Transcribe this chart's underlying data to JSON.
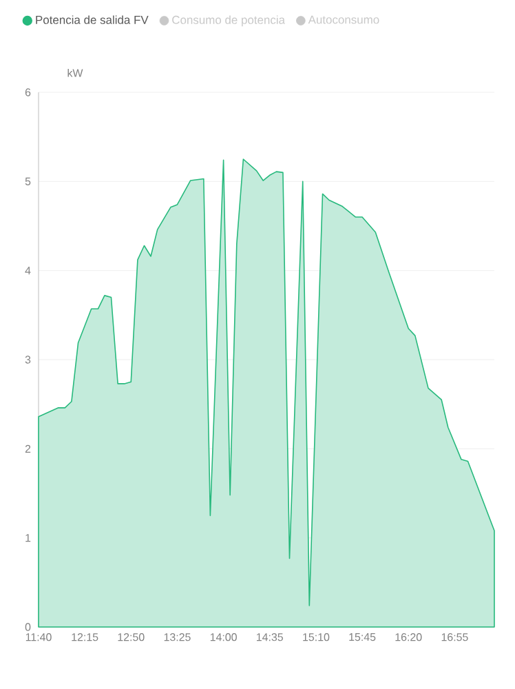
{
  "chart_data": {
    "type": "area",
    "ylabel": "kW",
    "x": [
      11.667,
      11.917,
      12.0,
      12.083,
      12.167,
      12.333,
      12.417,
      12.5,
      12.583,
      12.667,
      12.75,
      12.833,
      12.917,
      13.0,
      13.083,
      13.167,
      13.333,
      13.417,
      13.583,
      13.75,
      13.833,
      14.0,
      14.083,
      14.167,
      14.25,
      14.417,
      14.5,
      14.583,
      14.667,
      14.75,
      14.833,
      15.0,
      15.083,
      15.25,
      15.333,
      15.5,
      15.667,
      15.75,
      15.917,
      16.083,
      16.333,
      16.417,
      16.583,
      16.75,
      16.833,
      17.0,
      17.083,
      17.417
    ],
    "series": [
      {
        "name": "Potencia de salida FV",
        "color": "#27b97d",
        "values": [
          2.36,
          2.46,
          2.46,
          2.53,
          3.19,
          3.57,
          3.57,
          3.72,
          3.7,
          2.73,
          2.73,
          2.75,
          4.12,
          4.28,
          4.16,
          4.46,
          4.71,
          4.74,
          5.01,
          5.03,
          1.25,
          5.24,
          1.48,
          4.3,
          5.25,
          5.12,
          5.01,
          5.07,
          5.11,
          5.1,
          0.77,
          5.0,
          0.24,
          4.86,
          4.79,
          4.72,
          4.6,
          4.6,
          4.43,
          3.99,
          3.35,
          3.27,
          2.68,
          2.55,
          2.24,
          1.88,
          1.86,
          1.08
        ]
      },
      {
        "name": "Consumo de potencia",
        "color": "#c8c8c8",
        "values": [
          null,
          null,
          null,
          null,
          null,
          null,
          null,
          null,
          null,
          null,
          null,
          null,
          null,
          null,
          null,
          null,
          null,
          null,
          null,
          null,
          null,
          null,
          null,
          null,
          null,
          null,
          null,
          null,
          null,
          null,
          null,
          null,
          null,
          null,
          null,
          null,
          null,
          null,
          null,
          null,
          null,
          null,
          null,
          null,
          null,
          null,
          null,
          null
        ]
      },
      {
        "name": "Autoconsumo",
        "color": "#c8c8c8",
        "values": [
          null,
          null,
          null,
          null,
          null,
          null,
          null,
          null,
          null,
          null,
          null,
          null,
          null,
          null,
          null,
          null,
          null,
          null,
          null,
          null,
          null,
          null,
          null,
          null,
          null,
          null,
          null,
          null,
          null,
          null,
          null,
          null,
          null,
          null,
          null,
          null,
          null,
          null,
          null,
          null,
          null,
          null,
          null,
          null,
          null,
          null,
          null,
          null
        ]
      }
    ],
    "xlim": [
      11.667,
      17.417
    ],
    "xticks": [
      {
        "value": 11.667,
        "label": "11:40"
      },
      {
        "value": 12.25,
        "label": "12:15"
      },
      {
        "value": 12.833,
        "label": "12:50"
      },
      {
        "value": 13.417,
        "label": "13:25"
      },
      {
        "value": 14.0,
        "label": "14:00"
      },
      {
        "value": 14.583,
        "label": "14:35"
      },
      {
        "value": 15.167,
        "label": "15:10"
      },
      {
        "value": 15.75,
        "label": "15:45"
      },
      {
        "value": 16.333,
        "label": "16:20"
      },
      {
        "value": 16.917,
        "label": "16:55"
      }
    ],
    "ylim": [
      0,
      6
    ],
    "yticks": [
      0,
      1,
      2,
      3,
      4,
      5,
      6
    ],
    "grid": "y",
    "legend": "top left",
    "marker": "none"
  }
}
